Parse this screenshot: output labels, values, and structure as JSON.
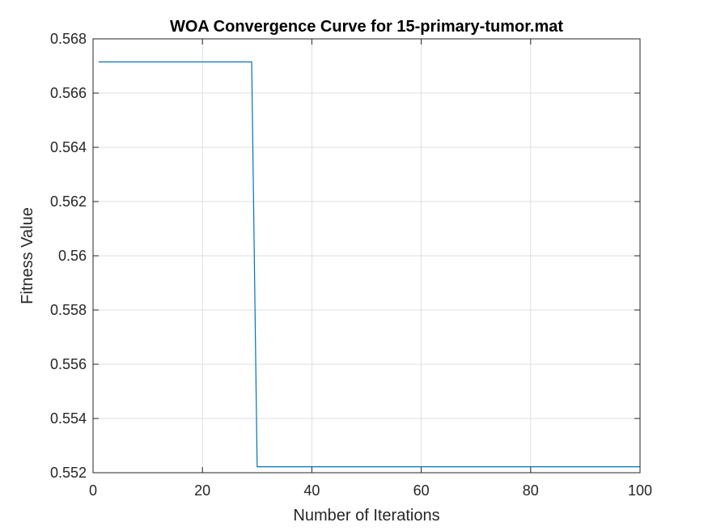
{
  "chart_data": {
    "type": "line",
    "title": "WOA Convergence Curve for 15-primary-tumor.mat",
    "xlabel": "Number of Iterations",
    "ylabel": "Fitness Value",
    "xlim": [
      0,
      100
    ],
    "ylim": [
      0.552,
      0.568
    ],
    "xticks": [
      0,
      20,
      40,
      60,
      80,
      100
    ],
    "xtick_labels": [
      "0",
      "20",
      "40",
      "60",
      "80",
      "100"
    ],
    "yticks": [
      0.552,
      0.554,
      0.556,
      0.558,
      0.56,
      0.562,
      0.564,
      0.566,
      0.568
    ],
    "ytick_labels": [
      "0.552",
      "0.554",
      "0.556",
      "0.558",
      "0.56",
      "0.562",
      "0.564",
      "0.566",
      "0.568"
    ],
    "grid": true,
    "series": [
      {
        "color": "#0072bd",
        "x": [
          1,
          29,
          30,
          100
        ],
        "y": [
          0.56715,
          0.56715,
          0.55222,
          0.55222
        ]
      }
    ],
    "colors": {
      "axes": "#262626",
      "grid": "#dfdfdf",
      "background": "#ffffff"
    }
  }
}
